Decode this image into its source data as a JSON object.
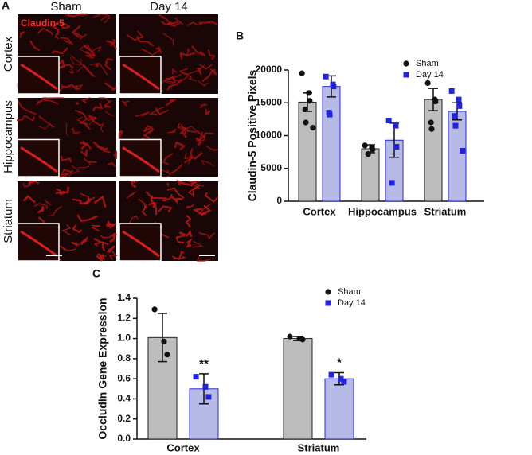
{
  "panel_a": {
    "letter": "A",
    "columns": [
      "Sham",
      "Day 14"
    ],
    "rows": [
      "Cortex",
      "Hippocampus",
      "Striatum"
    ],
    "stain": "Claudin-5"
  },
  "chart_data": [
    {
      "type": "bar",
      "letter": "B",
      "ylabel": "Claudin-5 Positive Pixels",
      "categories": [
        "Cortex",
        "Hippocampus",
        "Striatum"
      ],
      "ylim": [
        0,
        20000
      ],
      "yticks": [
        0,
        5000,
        10000,
        15000,
        20000
      ],
      "series": [
        {
          "name": "Sham",
          "color": "#bdbdbd",
          "point_color": "#111111",
          "marker": "circle",
          "values": [
            15100,
            8000,
            15500
          ],
          "errors": [
            1400,
            600,
            1700
          ],
          "points": [
            [
              19500,
              16500,
              15300,
              14000,
              12000,
              11200
            ],
            [
              8500,
              8200,
              7900,
              7200
            ],
            [
              18000,
              15500,
              15200,
              12000,
              11000
            ]
          ]
        },
        {
          "name": "Day 14",
          "color": "#b7b9e6",
          "point_color": "#2323d8",
          "marker": "square",
          "values": [
            17500,
            9300,
            13700
          ],
          "errors": [
            1600,
            2600,
            1300
          ],
          "points": [
            [
              19000,
              17800,
              17500,
              13500,
              13200
            ],
            [
              12300,
              11500,
              8300,
              2800
            ],
            [
              16800,
              15500,
              14500,
              13000,
              11500,
              7700
            ]
          ]
        }
      ]
    },
    {
      "type": "bar",
      "letter": "C",
      "ylabel": "Occludin Gene Expression",
      "categories": [
        "Cortex",
        "Striatum"
      ],
      "ylim": [
        0,
        1.4
      ],
      "yticks": [
        {
          "value": 0,
          "label": "0.0"
        },
        {
          "value": 0.2,
          "label": "0.2"
        },
        {
          "value": 0.4,
          "label": "0.4"
        },
        {
          "value": 0.6,
          "label": "0.6"
        },
        {
          "value": 0.8,
          "label": "0.8"
        },
        {
          "value": 1,
          "label": "1.0"
        },
        {
          "value": 1.2,
          "label": "1.2"
        },
        {
          "value": 1.4,
          "label": "1.4"
        }
      ],
      "series": [
        {
          "name": "Sham",
          "color": "#bdbdbd",
          "point_color": "#111111",
          "marker": "circle",
          "values": [
            1.01,
            1.0
          ],
          "errors": [
            0.24,
            0.02
          ],
          "points": [
            [
              1.29,
              0.97,
              0.84
            ],
            [
              1.02,
              1.0,
              0.99
            ]
          ]
        },
        {
          "name": "Day 14",
          "color": "#b7b9e6",
          "point_color": "#2323d8",
          "marker": "square",
          "values": [
            0.5,
            0.6
          ],
          "errors": [
            0.15,
            0.06
          ],
          "points": [
            [
              0.62,
              0.52,
              0.42
            ],
            [
              0.64,
              0.6,
              0.57
            ]
          ],
          "annotations": [
            "**",
            "*"
          ]
        }
      ]
    }
  ]
}
